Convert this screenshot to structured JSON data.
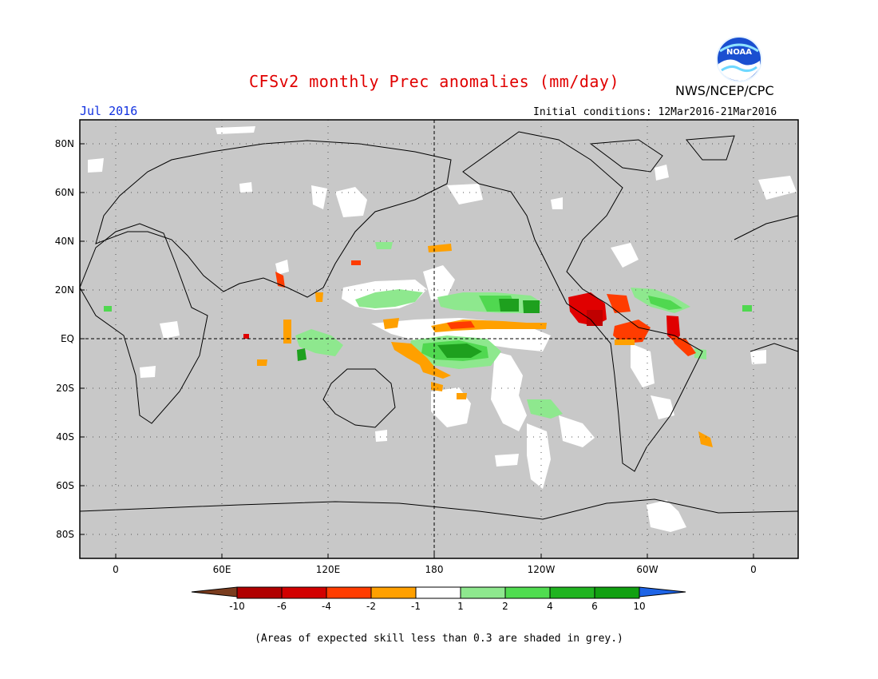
{
  "header": {
    "title": "CFSv2 monthly Prec anomalies (mm/day)",
    "month": "Jul 2016",
    "initial_conditions": "Initial conditions: 12Mar2016-21Mar2016",
    "agency": "NWS/NCEP/CPC",
    "logo_text": "NOAA"
  },
  "map": {
    "lat_labels": [
      "80N",
      "60N",
      "40N",
      "20N",
      "EQ",
      "20S",
      "40S",
      "60S",
      "80S"
    ],
    "lon_labels": [
      "0",
      "60E",
      "120E",
      "180",
      "120W",
      "60W",
      "0"
    ],
    "colors": {
      "grey": "#c8c8c8",
      "white": "#ffffff",
      "lightgreen": "#8ee88e",
      "green": "#50d850",
      "darkgreen": "#1ea01e",
      "orange": "#ffa000",
      "redorange": "#ff3c00",
      "red": "#e00000",
      "darkred": "#c00000"
    }
  },
  "legend": {
    "labels": [
      "-10",
      "-6",
      "-4",
      "-2",
      "-1",
      "1",
      "2",
      "4",
      "6",
      "10"
    ],
    "colors": [
      "#7a3c1e",
      "#b00000",
      "#d20000",
      "#ff3c00",
      "#ffa000",
      "#ffffff",
      "#8ee88e",
      "#50dc50",
      "#20b420",
      "#10a010",
      "#1e64e6"
    ]
  },
  "footnote": "(Areas of expected skill less than 0.3 are shaded in grey.)"
}
